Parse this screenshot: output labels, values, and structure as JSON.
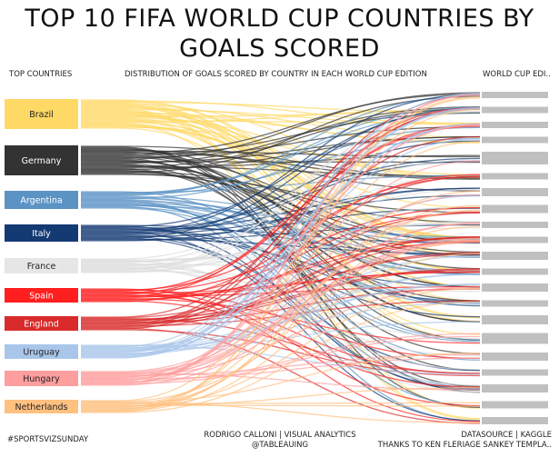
{
  "title": "TOP 10 FIFA WORLD CUP COUNTRIES BY GOALS SCORED",
  "headers": {
    "left": "TOP COUNTRIES",
    "middle": "DISTRIBUTION OF GOALS SCORED BY COUNTRY IN EACH WORLD CUP EDITION",
    "right": "WORLD CUP EDI.."
  },
  "footer": {
    "hashtag": "#SPORTSVIZSUNDAY",
    "author_line1": "RODRIGO CALLONI | VISUAL ANALYTICS",
    "author_line2": "@TABLEAUING",
    "source_line1": "DATASOURCE | KAGGLE",
    "source_line2": "THANKS TO KEN FLERIAGE SANKEY TEMPLA.."
  },
  "chart_data": {
    "type": "sankey",
    "title": "TOP 10 FIFA WORLD CUP COUNTRIES BY GOALS SCORED",
    "nodes_left": [
      {
        "name": "Brazil",
        "color": "#FFD966",
        "text_color": "#222222"
      },
      {
        "name": "Germany",
        "color": "#333333",
        "text_color": "#ffffff"
      },
      {
        "name": "Argentina",
        "color": "#5B93C5",
        "text_color": "#ffffff"
      },
      {
        "name": "Italy",
        "color": "#143A74",
        "text_color": "#ffffff"
      },
      {
        "name": "France",
        "color": "#E6E6E6",
        "text_color": "#222222"
      },
      {
        "name": "Spain",
        "color": "#FF1F1F",
        "text_color": "#ffffff"
      },
      {
        "name": "England",
        "color": "#D92B2B",
        "text_color": "#ffffff"
      },
      {
        "name": "Uruguay",
        "color": "#A9C6EA",
        "text_color": "#222222"
      },
      {
        "name": "Hungary",
        "color": "#FF9E9E",
        "text_color": "#222222"
      },
      {
        "name": "Netherlands",
        "color": "#FFC080",
        "text_color": "#222222"
      }
    ],
    "node_right_color": "#C0C0C0",
    "right_node_count": 21
  }
}
